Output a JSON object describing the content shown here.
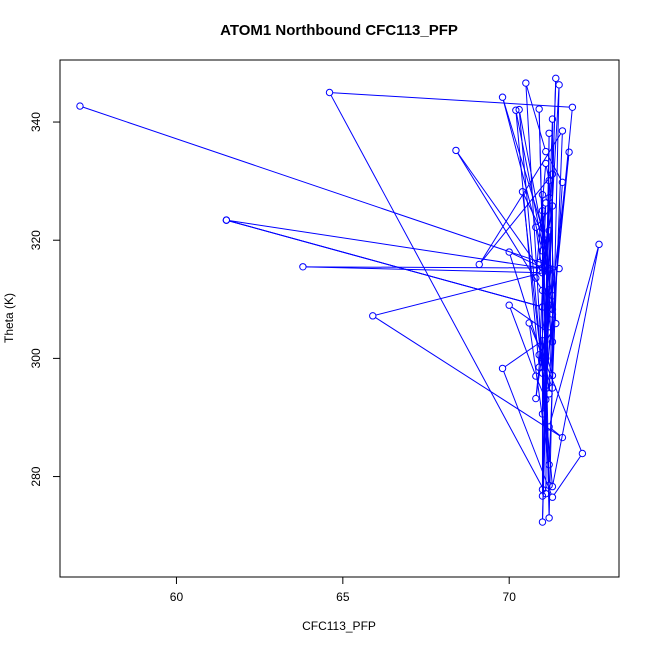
{
  "chart_data": {
    "type": "line",
    "title": "ATOM1 Northbound CFC113_PFP",
    "xlabel": "CFC113_PFP",
    "ylabel": "Theta (K)",
    "xlim": [
      56.5,
      73.3
    ],
    "ylim": [
      263.0,
      350.5
    ],
    "x_ticks": [
      60,
      65,
      70
    ],
    "y_ticks": [
      280,
      300,
      320,
      340
    ],
    "grid": false,
    "markers": "open-circle",
    "series": [
      {
        "color": "#0000ff",
        "points": [
          [
            57.1,
            342.7
          ],
          [
            71.5,
            315.2
          ],
          [
            65.9,
            307.2
          ],
          [
            71.6,
            286.6
          ],
          [
            71.2,
            288.4
          ],
          [
            72.7,
            319.3
          ],
          [
            71.3,
            278.3
          ],
          [
            70.3,
            342.1
          ],
          [
            71.2,
            315.1
          ],
          [
            61.5,
            323.4
          ],
          [
            71.0,
            308.7
          ],
          [
            61.5,
            323.4
          ],
          [
            71.0,
            308.7
          ],
          [
            71.2,
            327.2
          ],
          [
            71.0,
            272.3
          ],
          [
            71.4,
            347.4
          ],
          [
            71.0,
            276.7
          ],
          [
            71.2,
            338.1
          ],
          [
            71.1,
            277.1
          ],
          [
            64.6,
            345.0
          ],
          [
            71.9,
            342.5
          ],
          [
            71.1,
            295.4
          ],
          [
            70.9,
            342.2
          ],
          [
            71.2,
            273.0
          ],
          [
            71.5,
            346.3
          ],
          [
            71.0,
            297.5
          ],
          [
            71.8,
            334.9
          ],
          [
            71.0,
            290.6
          ],
          [
            71.3,
            340.5
          ],
          [
            71.3,
            297.1
          ],
          [
            71.0,
            303.0
          ],
          [
            69.8,
            298.3
          ],
          [
            71.3,
            276.5
          ],
          [
            72.2,
            283.9
          ],
          [
            70.6,
            306.0
          ],
          [
            71.2,
            282.0
          ],
          [
            71.6,
            338.5
          ],
          [
            69.1,
            315.9
          ],
          [
            71.3,
            331.2
          ],
          [
            71.0,
            311.5
          ],
          [
            68.4,
            335.2
          ],
          [
            71.0,
            314.5
          ],
          [
            63.8,
            315.5
          ],
          [
            71.0,
            315.3
          ],
          [
            71.3,
            325.8
          ],
          [
            70.8,
            322.2
          ],
          [
            71.3,
            302.8
          ],
          [
            71.6,
            329.8
          ],
          [
            71.1,
            335.0
          ],
          [
            70.5,
            346.6
          ],
          [
            71.2,
            278.5
          ],
          [
            71.0,
            327.7
          ],
          [
            71.0,
            277.8
          ],
          [
            71.2,
            311.6
          ],
          [
            71.3,
            295.0
          ],
          [
            70.9,
            300.6
          ],
          [
            71.4,
            305.9
          ],
          [
            71.2,
            330.1
          ],
          [
            71.1,
            333.0
          ],
          [
            70.8,
            313.6
          ],
          [
            70.9,
            316.2
          ],
          [
            71.1,
            326.3
          ],
          [
            70.9,
            298.5
          ],
          [
            70.2,
            342.0
          ],
          [
            71.3,
            310.6
          ],
          [
            71.3,
            308.3
          ],
          [
            71.2,
            321.6
          ],
          [
            71.0,
            318.2
          ],
          [
            69.8,
            344.2
          ],
          [
            71.1,
            320.0
          ],
          [
            70.4,
            328.2
          ],
          [
            71.1,
            293.0
          ],
          [
            70.8,
            297.0
          ],
          [
            70.0,
            309.0
          ],
          [
            71.2,
            304.3
          ],
          [
            71.0,
            300.0
          ],
          [
            70.0,
            318.0
          ],
          [
            71.2,
            314.8
          ],
          [
            70.8,
            293.2
          ],
          [
            71.2,
            309.0
          ],
          [
            71.0,
            325.0
          ],
          [
            71.3,
            307.5
          ],
          [
            71.2,
            294.0
          ],
          [
            71.1,
            300.0
          ]
        ]
      }
    ]
  }
}
